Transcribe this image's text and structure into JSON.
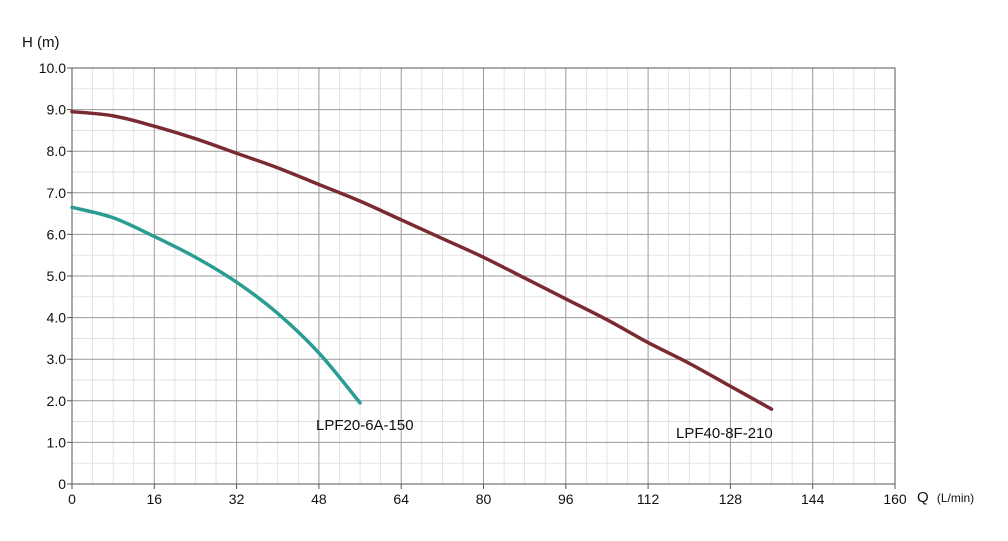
{
  "chart_data": {
    "type": "line",
    "title": "",
    "ylabel": "H (m)",
    "xlabel_main": "Q",
    "xlabel_unit": "(L/min)",
    "xlim": [
      0,
      160
    ],
    "ylim": [
      0,
      10
    ],
    "x_ticks": [
      "0",
      "16",
      "32",
      "48",
      "64",
      "80",
      "96",
      "112",
      "128",
      "144",
      "160"
    ],
    "y_ticks": [
      "0",
      "1.0",
      "2.0",
      "3.0",
      "4.0",
      "5.0",
      "6.0",
      "7.0",
      "8.0",
      "9.0",
      "10.0"
    ],
    "grid": true,
    "series": [
      {
        "name": "LPF20-6A-150",
        "color": "#2a9d93",
        "x": [
          0,
          8,
          16,
          24,
          32,
          40,
          48,
          56
        ],
        "y": [
          6.65,
          6.4,
          5.95,
          5.45,
          4.85,
          4.1,
          3.15,
          1.95
        ]
      },
      {
        "name": "LPF40-8F-210",
        "color": "#7a2a32",
        "x": [
          0,
          8,
          16,
          24,
          32,
          40,
          48,
          56,
          64,
          72,
          80,
          88,
          96,
          104,
          112,
          120,
          128,
          136
        ],
        "y": [
          8.95,
          8.85,
          8.6,
          8.3,
          7.95,
          7.6,
          7.2,
          6.8,
          6.35,
          5.9,
          5.45,
          4.95,
          4.45,
          3.95,
          3.4,
          2.9,
          2.35,
          1.8
        ]
      }
    ]
  }
}
